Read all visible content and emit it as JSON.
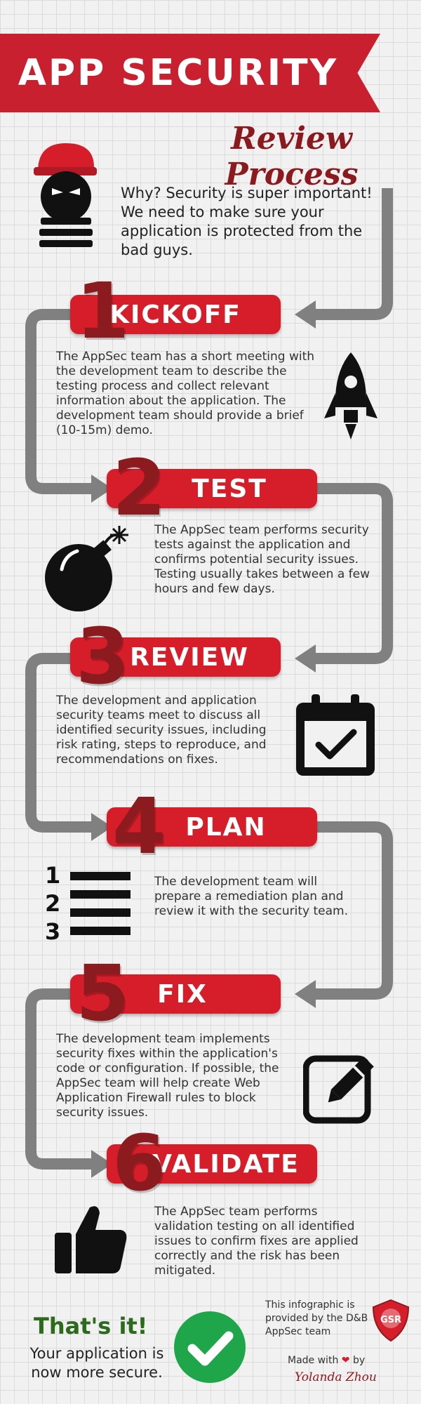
{
  "header": {
    "title": "APP SECURITY",
    "subtitle": "Review Process"
  },
  "intro": {
    "text": "Why? Security is super important! We need to make sure your application is protected from the bad guys."
  },
  "steps": [
    {
      "number": "1",
      "title": "KICKOFF",
      "icon": "rocket-icon",
      "text": "The AppSec team has a short meeting with the development team to describe the testing process and collect relevant information about the application. The development team should provide a brief (10-15m) demo."
    },
    {
      "number": "2",
      "title": "TEST",
      "icon": "bomb-icon",
      "text": "The AppSec team performs security tests against the application and confirms potential security issues. Testing usually takes between a few hours and few days."
    },
    {
      "number": "3",
      "title": "REVIEW",
      "icon": "calendar-check-icon",
      "text": "The development and application security teams meet to discuss all identified security issues, including risk rating, steps to reproduce, and recommendations on fixes."
    },
    {
      "number": "4",
      "title": "PLAN",
      "icon": "numbered-list-icon",
      "text": "The development team will prepare a remediation plan and review it with the security team."
    },
    {
      "number": "5",
      "title": "FIX",
      "icon": "edit-icon",
      "text": "The development team implements security fixes within the application's code or configuration. If possible, the AppSec team will help create Web Application Firewall rules to block security issues."
    },
    {
      "number": "6",
      "title": "VALIDATE",
      "icon": "thumbs-up-icon",
      "text": "The AppSec team performs validation testing on all identified issues to confirm fixes are applied correctly and the risk has been mitigated."
    }
  ],
  "list_icon_numbers": [
    "1",
    "2",
    "3"
  ],
  "footer": {
    "done_title": "That's it!",
    "done_text": "Your application is now more secure.",
    "provided_text": "This infographic is provided by the D&B AppSec team",
    "logo_text": "GSR",
    "made_with": "Made with",
    "by": "by",
    "author": "Yolanda Zhou"
  },
  "colors": {
    "banner": "#c8202f",
    "pill": "#d51e2a",
    "number": "#8c1b1f",
    "arrow": "#808080",
    "check_circle": "#1fa64a"
  }
}
